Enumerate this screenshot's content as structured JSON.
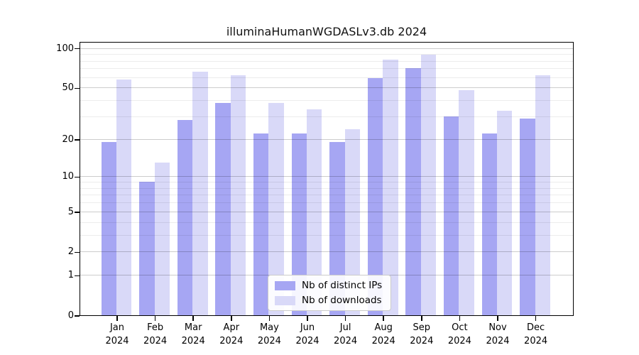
{
  "chart_data": {
    "type": "bar",
    "title": "illuminaHumanWGDASLv3.db 2024",
    "months": [
      "Jan",
      "Feb",
      "Mar",
      "Apr",
      "May",
      "Jun",
      "Jul",
      "Aug",
      "Sep",
      "Oct",
      "Nov",
      "Dec"
    ],
    "year_label": "2024",
    "series": [
      {
        "name": "Nb of distinct IPs",
        "color": "#a6a6f3",
        "values": [
          19,
          9,
          28,
          38,
          22,
          22,
          19,
          59,
          70,
          30,
          22,
          29
        ]
      },
      {
        "name": "Nb of downloads",
        "color": "#d9d9f8",
        "values": [
          58,
          13,
          66,
          62,
          38,
          34,
          24,
          82,
          89,
          48,
          33,
          62
        ]
      }
    ],
    "y_ticks": [
      0,
      1,
      2,
      5,
      10,
      20,
      50,
      100
    ],
    "y_minor_gridlines": [
      3,
      4,
      6,
      7,
      8,
      9,
      30,
      40,
      60,
      70,
      80,
      90
    ],
    "y_scale": "log1p",
    "ylim": [
      0,
      110
    ],
    "grid": "horizontal major+minor",
    "legend_position": "lower center inside plot"
  }
}
